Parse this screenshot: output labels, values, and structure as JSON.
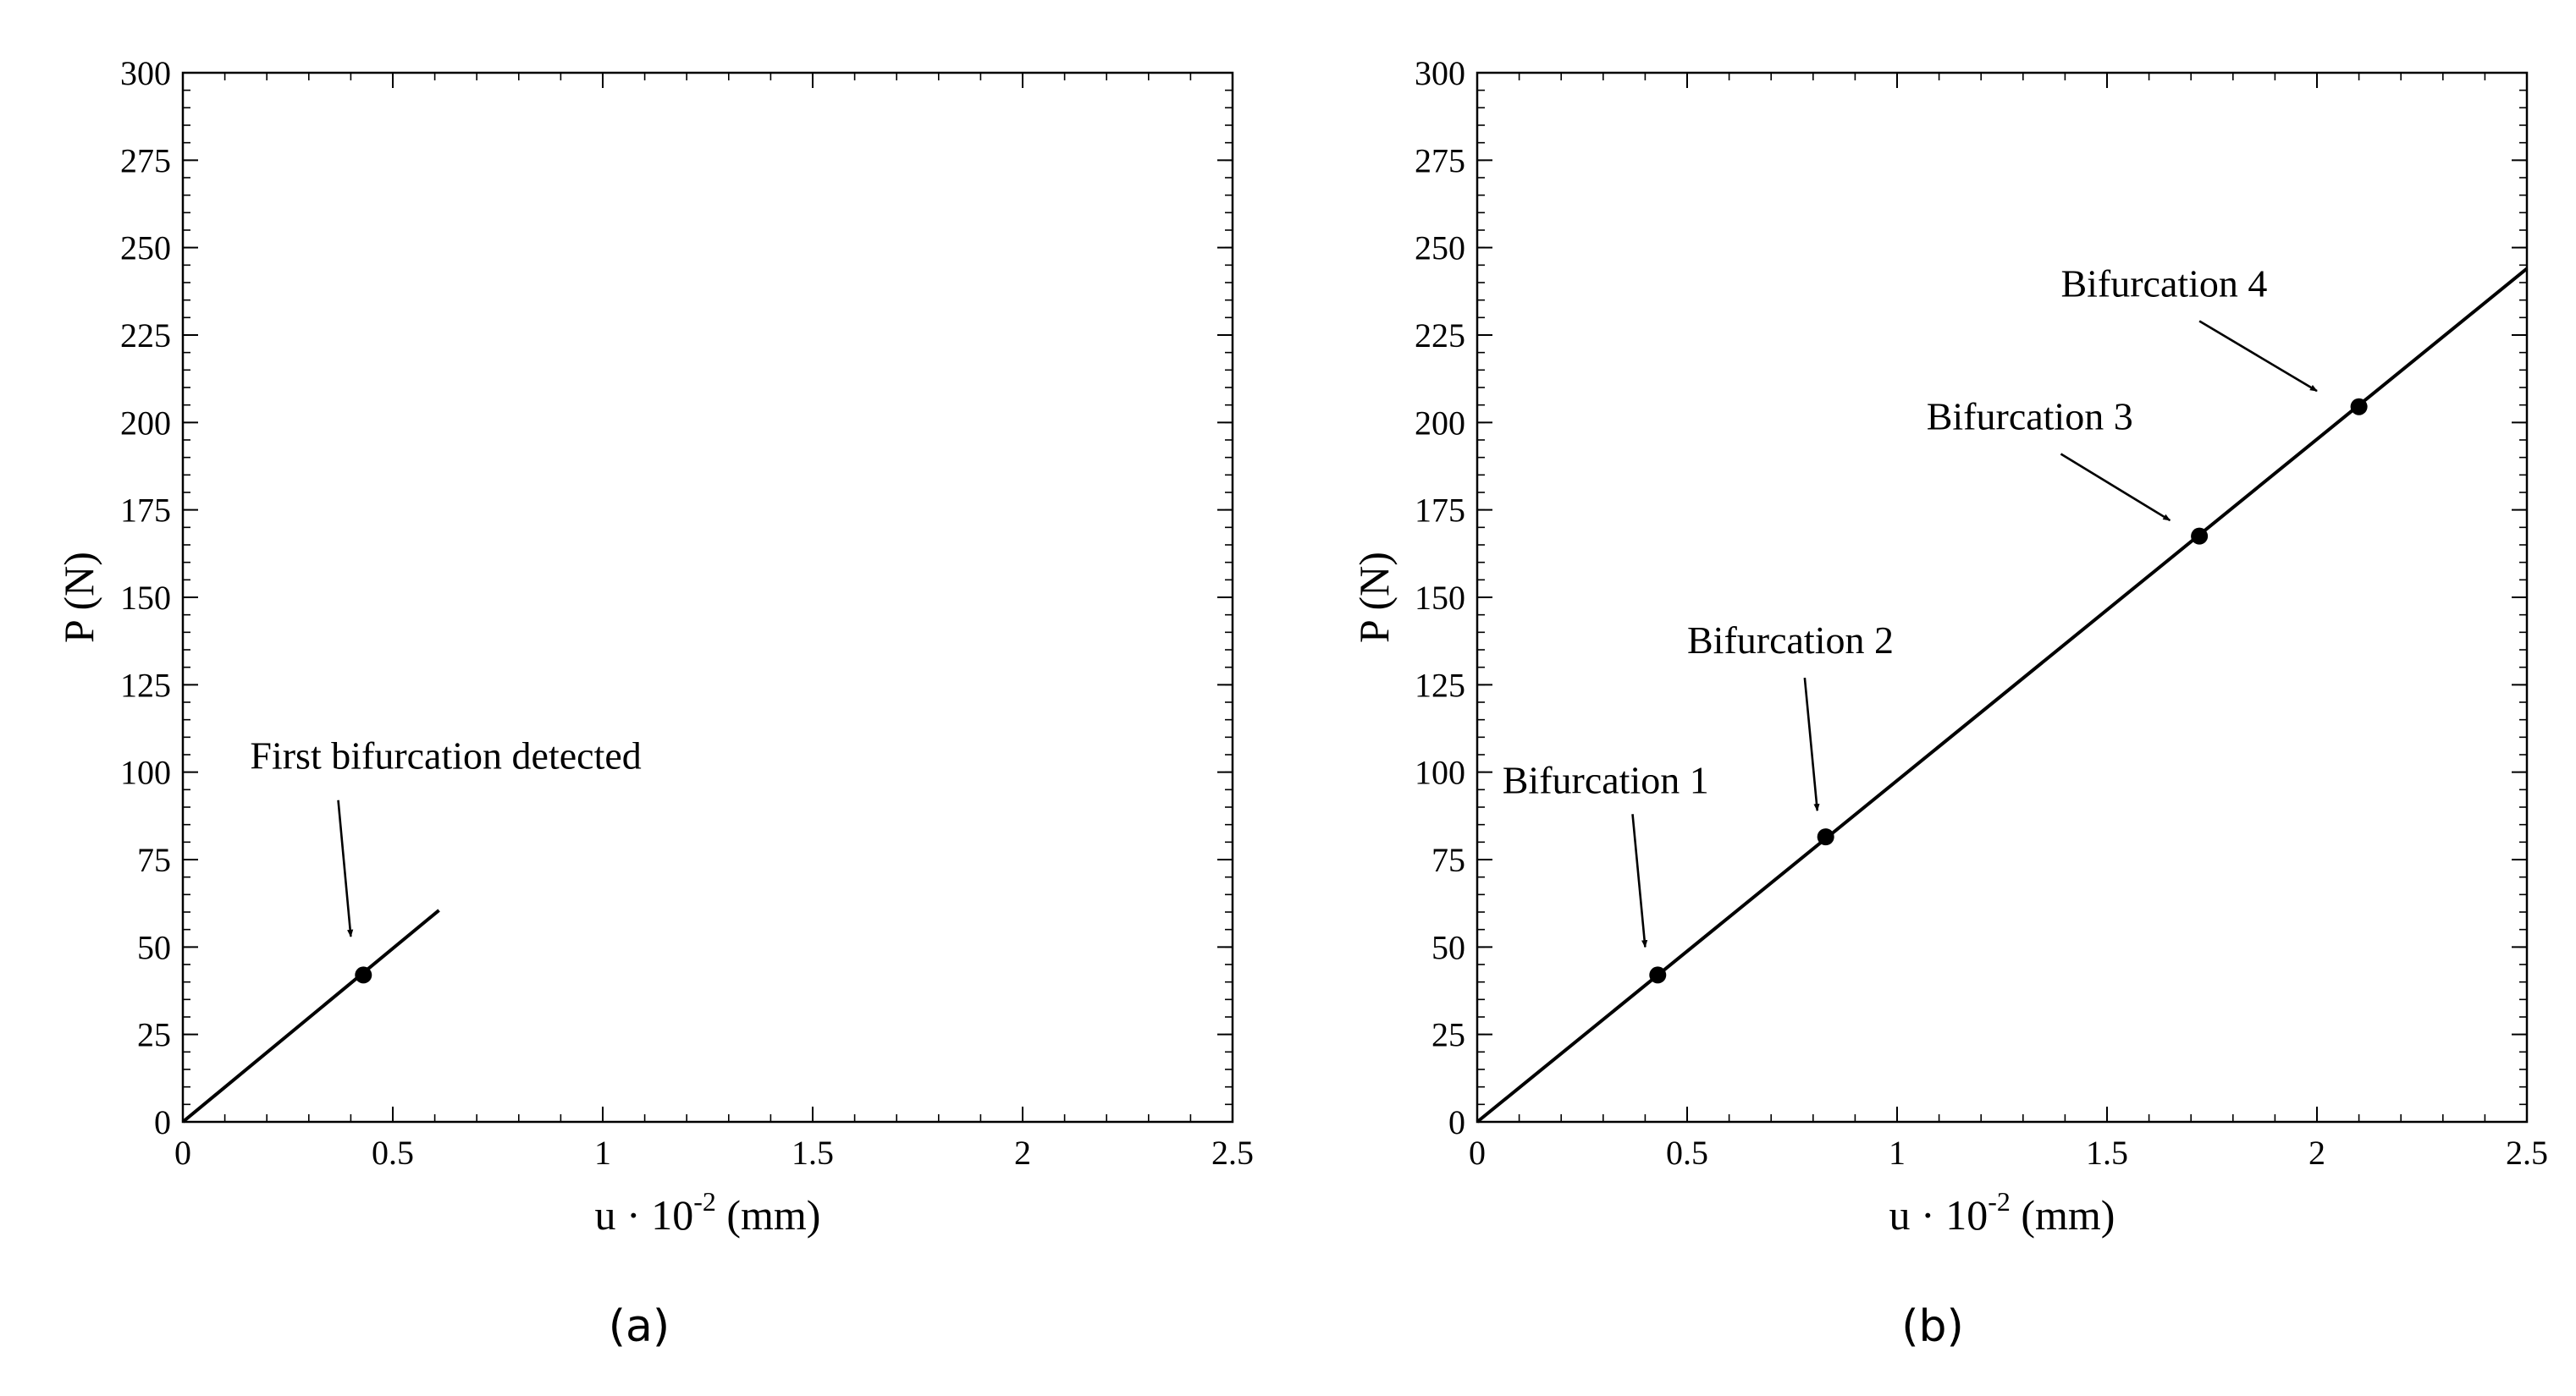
{
  "chart_data": [
    {
      "type": "line",
      "caption": "(a)",
      "xlabel": {
        "base": "u · 10",
        "exp": "-2",
        "unit": " (mm)"
      },
      "ylabel": "P (N)",
      "xlim": [
        0,
        2.5
      ],
      "ylim": [
        0,
        300
      ],
      "xticks": [
        0,
        0.5,
        1,
        1.5,
        2,
        2.5
      ],
      "xtick_labels": [
        "0",
        "0.5",
        "1",
        "1.5",
        "2",
        "2.5"
      ],
      "yticks": [
        0,
        25,
        50,
        75,
        100,
        125,
        150,
        175,
        200,
        225,
        250,
        275,
        300
      ],
      "ytick_labels": [
        "0",
        "25",
        "50",
        "75",
        "100",
        "125",
        "150",
        "175",
        "200",
        "225",
        "250",
        "275",
        "300"
      ],
      "x_minor_step": 0.1,
      "y_minor_step": 5,
      "grid": false,
      "series": [
        {
          "x": [
            0,
            0.61
          ],
          "y": [
            0,
            60.5
          ],
          "color": "#000000"
        }
      ],
      "points": [
        {
          "x": 0.43,
          "y": 42
        }
      ],
      "annotations": [
        {
          "text": "First bifurcation detected",
          "text_x": 0.16,
          "text_y": 101,
          "arrow_from": [
            0.37,
            92
          ],
          "arrow_to": [
            0.4,
            53
          ],
          "anchor": "start"
        }
      ]
    },
    {
      "type": "line",
      "caption": "(b)",
      "xlabel": {
        "base": "u · 10",
        "exp": "-2",
        "unit": " (mm)"
      },
      "ylabel": "P (N)",
      "xlim": [
        0,
        2.5
      ],
      "ylim": [
        0,
        300
      ],
      "xticks": [
        0,
        0.5,
        1,
        1.5,
        2,
        2.5
      ],
      "xtick_labels": [
        "0",
        "0.5",
        "1",
        "1.5",
        "2",
        "2.5"
      ],
      "yticks": [
        0,
        25,
        50,
        75,
        100,
        125,
        150,
        175,
        200,
        225,
        250,
        275,
        300
      ],
      "ytick_labels": [
        "0",
        "25",
        "50",
        "75",
        "100",
        "125",
        "150",
        "175",
        "200",
        "225",
        "250",
        "275",
        "300"
      ],
      "x_minor_step": 0.1,
      "y_minor_step": 5,
      "grid": false,
      "series": [
        {
          "x": [
            0,
            2.5
          ],
          "y": [
            0,
            244
          ],
          "color": "#000000"
        }
      ],
      "points": [
        {
          "x": 0.43,
          "y": 42
        },
        {
          "x": 0.83,
          "y": 81.5
        },
        {
          "x": 1.72,
          "y": 167.5
        },
        {
          "x": 2.1,
          "y": 204.5
        }
      ],
      "annotations": [
        {
          "text": "Bifurcation 1",
          "text_x": 0.06,
          "text_y": 94,
          "arrow_from": [
            0.37,
            88
          ],
          "arrow_to": [
            0.4,
            50
          ],
          "anchor": "start"
        },
        {
          "text": "Bifurcation 2",
          "text_x": 0.5,
          "text_y": 134,
          "arrow_from": [
            0.78,
            127
          ],
          "arrow_to": [
            0.81,
            89
          ],
          "anchor": "start"
        },
        {
          "text": "Bifurcation 3",
          "text_x": 1.07,
          "text_y": 198,
          "arrow_from": [
            1.39,
            191
          ],
          "arrow_to": [
            1.65,
            172
          ],
          "anchor": "start"
        },
        {
          "text": "Bifurcation 4",
          "text_x": 1.39,
          "text_y": 236,
          "arrow_from": [
            1.72,
            229
          ],
          "arrow_to": [
            2.0,
            209
          ],
          "anchor": "start"
        }
      ]
    }
  ]
}
